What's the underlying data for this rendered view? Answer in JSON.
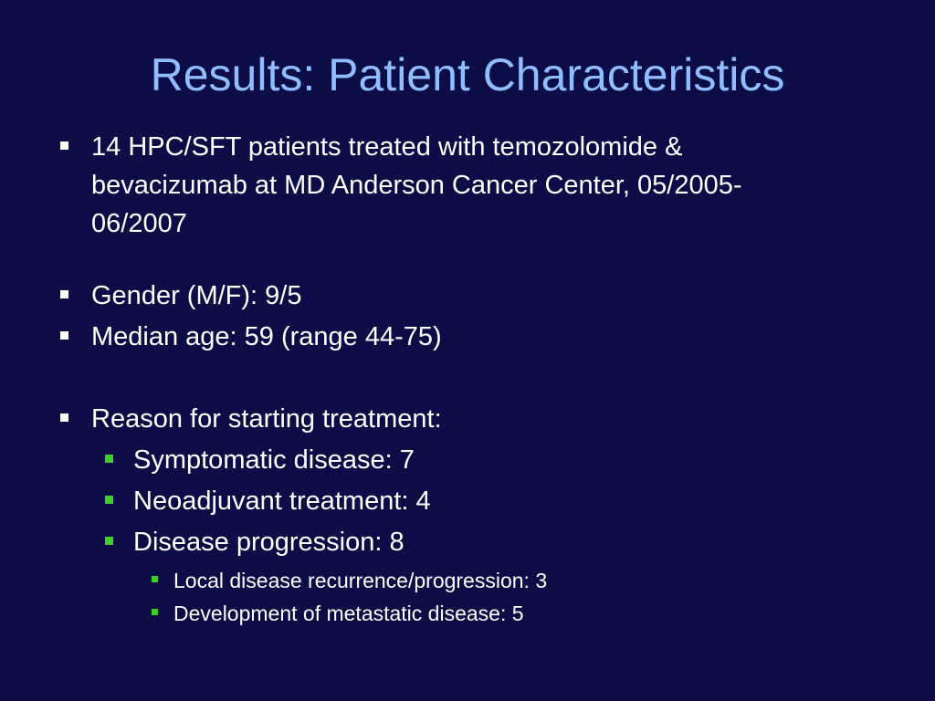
{
  "slide": {
    "title": "Results: Patient Characteristics",
    "bullets": {
      "patients": {
        "line1": "14 HPC/SFT patients treated with temozolomide &",
        "line2": "bevacizumab at MD Anderson Cancer Center, 05/2005-",
        "line3": "06/2007"
      },
      "gender": "Gender (M/F): 9/5",
      "age": "Median age: 59 (range 44-75)",
      "reason": "Reason for starting treatment:",
      "symptomatic": "Symptomatic disease: 7",
      "neoadjuvant": "Neoadjuvant treatment: 4",
      "progression": "Disease progression: 8",
      "local": "Local disease recurrence/progression: 3",
      "metastatic": "Development of metastatic disease: 5"
    },
    "colors": {
      "background": "#0c0c46",
      "title": "#8fbdff",
      "text": "#ffffff",
      "sub_bullet": "#3ecf29"
    }
  }
}
